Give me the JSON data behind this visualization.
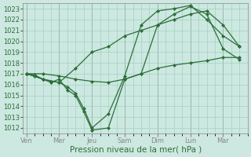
{
  "background_color": "#cce8e0",
  "grid_color": "#99ccbb",
  "line_color": "#2d6e3a",
  "xlabel": "Pression niveau de la mer( hPa )",
  "xlabel_fontsize": 7.5,
  "ylim": [
    1011.5,
    1023.5
  ],
  "yticks": [
    1012,
    1013,
    1014,
    1015,
    1016,
    1017,
    1018,
    1019,
    1020,
    1021,
    1022,
    1023
  ],
  "xtick_labels": [
    "Ven",
    "Mer",
    "Jeu",
    "Sam",
    "Dim",
    "Lun",
    "Mar"
  ],
  "xtick_positions": [
    0,
    2,
    4,
    6,
    8,
    10,
    12
  ],
  "xlim": [
    -0.2,
    13.5
  ],
  "lines": [
    {
      "x": [
        0,
        0.5,
        1,
        1.5,
        2,
        2.5,
        3,
        3.5,
        4,
        5,
        6,
        7,
        8,
        9,
        10,
        11,
        12,
        13
      ],
      "y": [
        1017,
        1016.8,
        1016.5,
        1016.2,
        1016.5,
        1015.5,
        1015.0,
        1013.5,
        1011.8,
        1012.0,
        1016.5,
        1017.0,
        1021.5,
        1022.5,
        1023.2,
        1022.5,
        1019.3,
        1018.3
      ]
    },
    {
      "x": [
        0,
        0.5,
        1,
        1.5,
        2,
        2.5,
        3,
        3.5,
        4,
        5,
        6,
        7,
        8,
        9,
        10,
        11,
        12,
        13
      ],
      "y": [
        1017,
        1016.9,
        1016.5,
        1016.3,
        1016.2,
        1015.8,
        1015.2,
        1013.8,
        1012.0,
        1013.3,
        1016.8,
        1021.5,
        1022.8,
        1023.0,
        1023.3,
        1022.0,
        1020.5,
        1019.5
      ]
    },
    {
      "x": [
        0,
        1,
        2,
        3,
        4,
        5,
        6,
        7,
        8,
        9,
        10,
        11,
        12,
        13
      ],
      "y": [
        1017,
        1017.0,
        1016.8,
        1016.5,
        1016.3,
        1016.2,
        1016.5,
        1017.0,
        1017.5,
        1017.8,
        1018.0,
        1018.2,
        1018.5,
        1018.5
      ]
    },
    {
      "x": [
        0,
        1,
        2,
        3,
        4,
        5,
        6,
        7,
        8,
        9,
        10,
        11,
        12,
        13
      ],
      "y": [
        1017,
        1016.5,
        1016.2,
        1017.5,
        1019.0,
        1019.5,
        1020.5,
        1021.0,
        1021.5,
        1022.0,
        1022.5,
        1022.8,
        1021.5,
        1019.5
      ]
    }
  ],
  "marker": "D",
  "marker_size": 2.0,
  "linewidth": 0.9,
  "tick_fontsize": 6.0
}
